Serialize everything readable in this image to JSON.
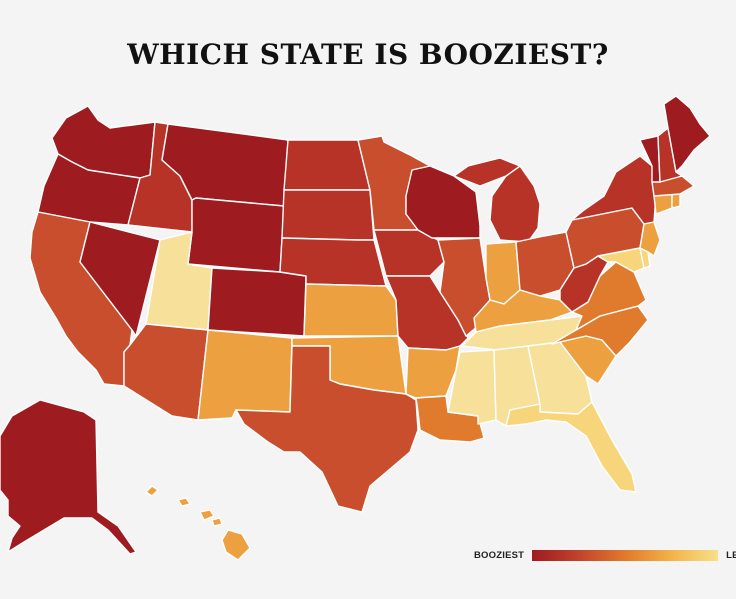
{
  "title": "WHICH STATE IS BOOZIEST?",
  "legend": {
    "high_label": "BOOZIEST",
    "low_label": "LEAST",
    "gradient": [
      "#9e1b20",
      "#c0432b",
      "#e07a2d",
      "#f3b24a",
      "#f7e08a"
    ]
  },
  "colors": {
    "darkred": "#9e1b20",
    "red": "#b73227",
    "redorange": "#c84e2d",
    "orange": "#e07a2d",
    "lightorange": "#eda040",
    "yellow": "#f7d57a",
    "paleyellow": "#f7e19a"
  }
}
